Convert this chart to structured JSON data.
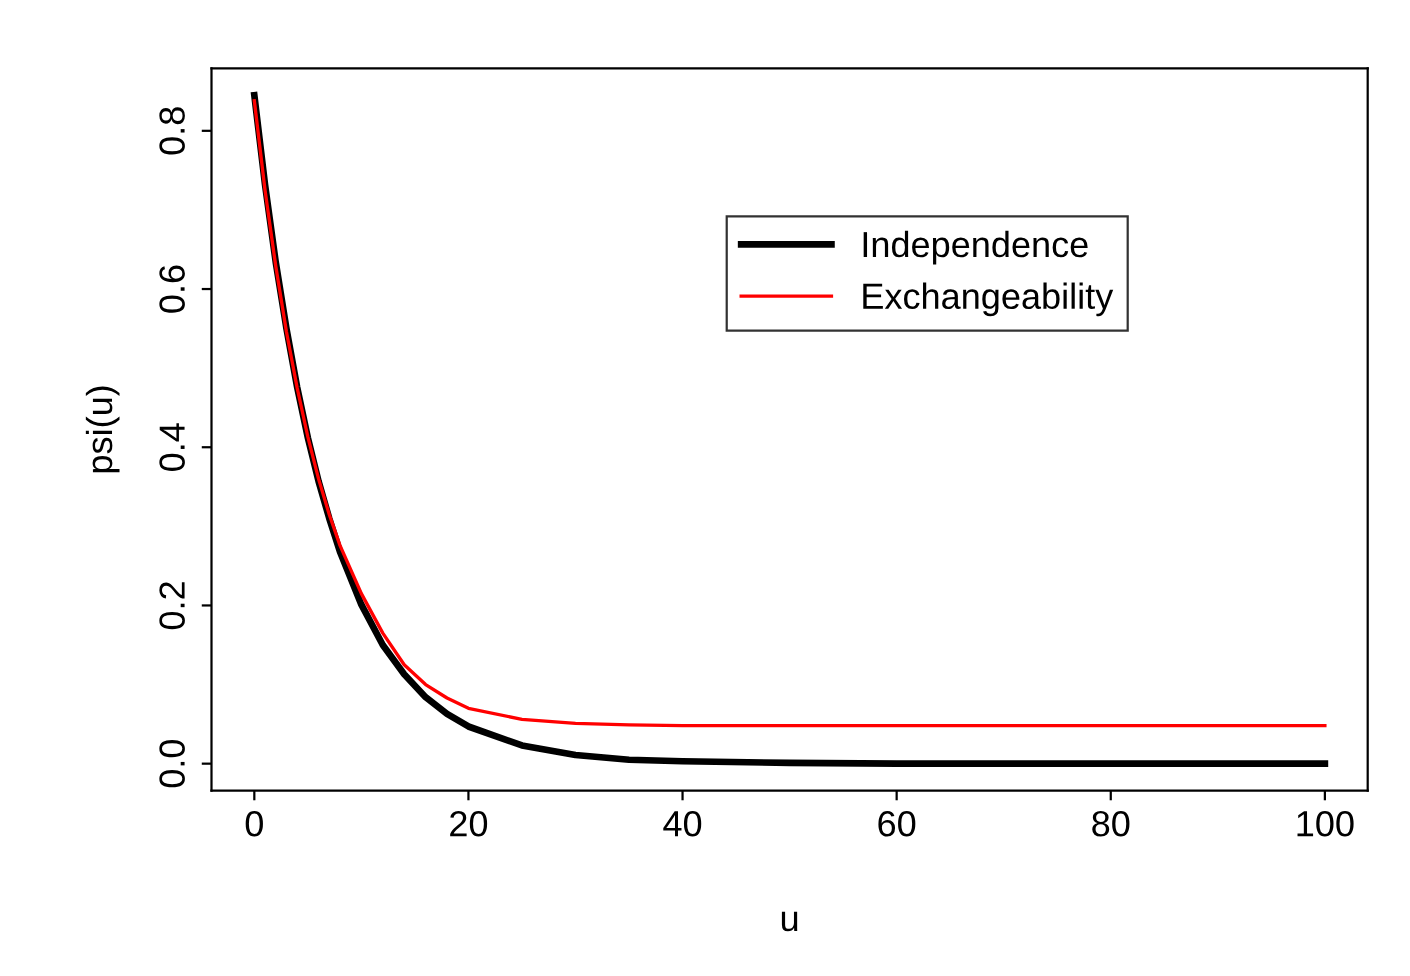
{
  "chart_data": {
    "type": "line",
    "xlabel": "u",
    "ylabel": "psi(u)",
    "x": [
      0,
      1,
      2,
      3,
      4,
      5,
      6,
      7,
      8,
      10,
      12,
      14,
      16,
      18,
      20,
      25,
      30,
      35,
      40,
      50,
      60,
      70,
      80,
      90,
      100
    ],
    "series": [
      {
        "name": "Independence",
        "color": "#000000",
        "values": [
          0.845,
          0.732,
          0.634,
          0.55,
          0.476,
          0.412,
          0.357,
          0.31,
          0.268,
          0.201,
          0.15,
          0.113,
          0.084,
          0.063,
          0.047,
          0.023,
          0.011,
          0.005,
          0.003,
          0.001,
          0,
          0,
          0,
          0,
          0
        ]
      },
      {
        "name": "Exchangeability",
        "color": "#ff0000",
        "values": [
          0.838,
          0.725,
          0.629,
          0.546,
          0.475,
          0.413,
          0.36,
          0.315,
          0.276,
          0.215,
          0.165,
          0.125,
          0.1,
          0.083,
          0.07,
          0.056,
          0.051,
          0.049,
          0.048,
          0.048,
          0.048,
          0.048,
          0.048,
          0.048,
          0.048
        ]
      }
    ],
    "xlim": [
      -4,
      104
    ],
    "ylim": [
      -0.034,
      0.879
    ],
    "xticks": [
      0,
      20,
      40,
      60,
      80,
      100
    ],
    "yticks": [
      {
        "value": 0,
        "label": "0.0"
      },
      {
        "value": 0.2,
        "label": "0.2"
      },
      {
        "value": 0.4,
        "label": "0.4"
      },
      {
        "value": 0.6,
        "label": "0.6"
      },
      {
        "value": 0.8,
        "label": "0.8"
      }
    ],
    "legend": "top right",
    "grid": false,
    "line_style": "solid",
    "marker": "none"
  }
}
